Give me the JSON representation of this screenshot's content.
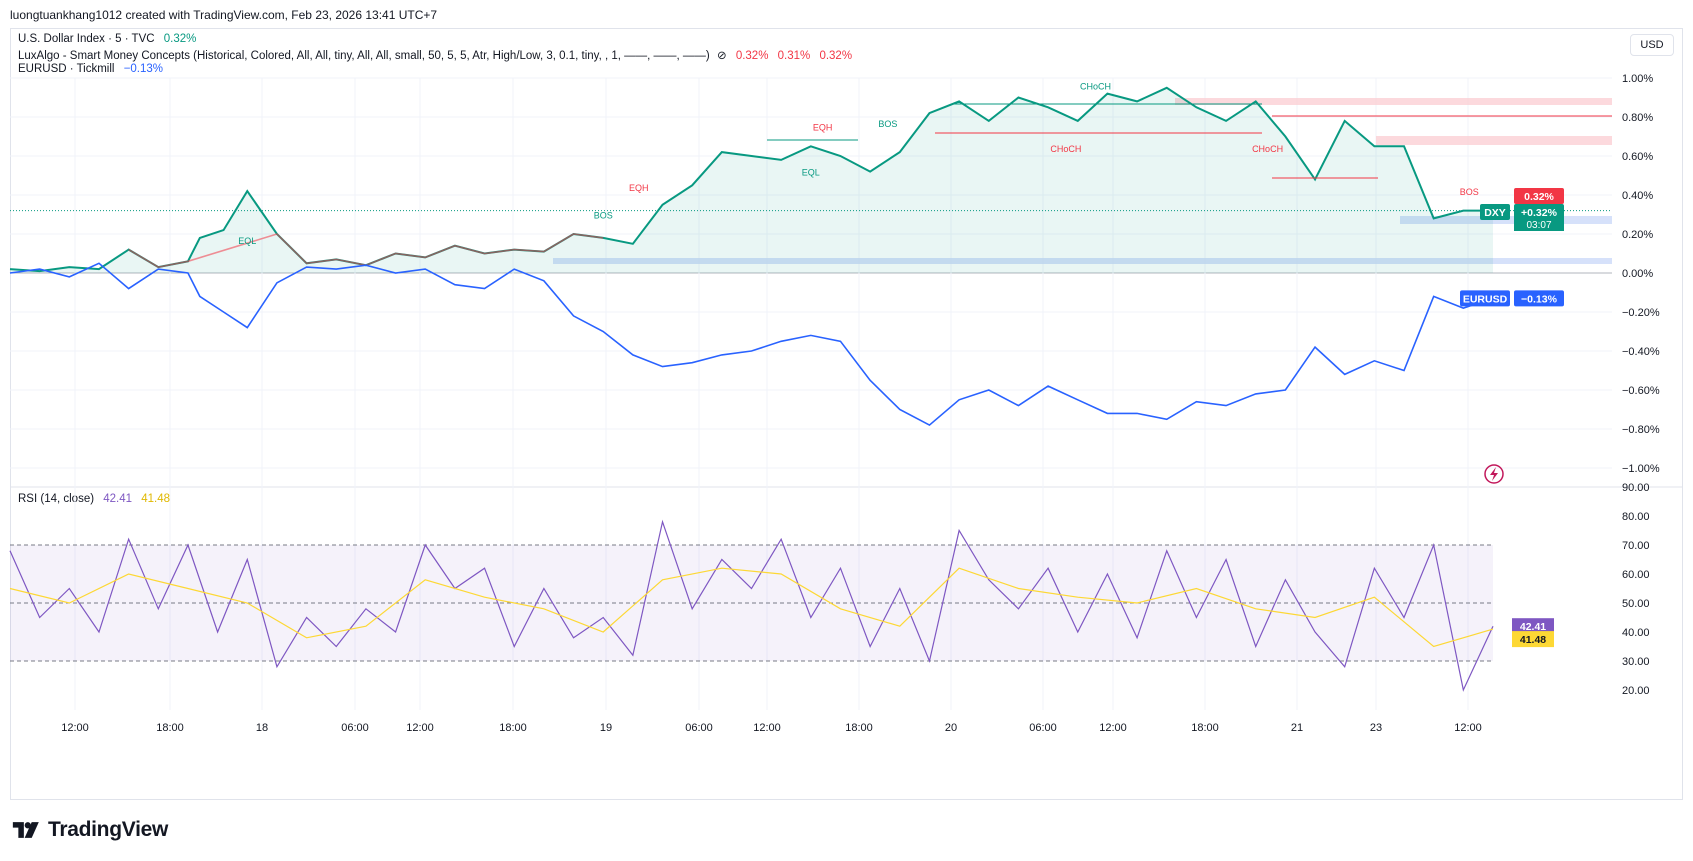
{
  "header": {
    "text": "luongtuankhang1012 created with TradingView.com, Feb 23, 2026 13:41 UTC+7"
  },
  "legend": {
    "line1_name": "U.S. Dollar Index · 5 · TVC",
    "line1_pct": "0.32%",
    "line2_name": "LuxAlgo - Smart Money Concepts (Historical, Colored, All, All, tiny, All, All, small, 50, 5, 5, Atr, High/Low, 3, 0.1, tiny, , 1, ——, ——, ——)",
    "line2_symbol": "⊘",
    "line2_v1": "0.32%",
    "line2_v2": "0.31%",
    "line2_v3": "0.32%",
    "line3_name": "EURUSD · Tickmill",
    "line3_pct": "−0.13%"
  },
  "currency_button": "USD",
  "rsi_legend": {
    "name": "RSI (14, close)",
    "v1": "42.41",
    "v2": "41.48"
  },
  "logo_text": "TradingView",
  "colors": {
    "dxy_green": "#089981",
    "dxy_red": "#f23645",
    "eurusd_blue": "#2962ff",
    "rsi_purple": "#7e57c2",
    "rsi_ma_yellow": "#fdd835",
    "grid": "#f0f3fa"
  },
  "chart_data": [
    {
      "type": "line",
      "title": "U.S. Dollar Index · 5 · TVC",
      "ylabel": "",
      "ylim": [
        -1.1,
        1.1
      ],
      "y_unit": "%",
      "y_ticks": [
        "1.00%",
        "0.80%",
        "0.60%",
        "0.40%",
        "0.20%",
        "0.00%",
        "−0.20%",
        "−0.40%",
        "−0.60%",
        "−0.80%",
        "−1.00%"
      ],
      "x_ticks": [
        "12:00",
        "18:00",
        "18",
        "06:00",
        "12:00",
        "18:00",
        "19",
        "06:00",
        "12:00",
        "18:00",
        "20",
        "06:00",
        "12:00",
        "18:00",
        "21",
        "23",
        "12:00"
      ],
      "grid": true,
      "series": [
        {
          "name": "DXY",
          "last_label": "+0.32%",
          "countdown": "03:07",
          "x": [
            0,
            5,
            10,
            15,
            20,
            25,
            30,
            32,
            36,
            40,
            45,
            50,
            55,
            60,
            65,
            70,
            75,
            80,
            85,
            90,
            95,
            100,
            105,
            110,
            115,
            120,
            125,
            130,
            135,
            140,
            145,
            150,
            155,
            160,
            165,
            170,
            175,
            180,
            185,
            190,
            195,
            200,
            205,
            210,
            215,
            220,
            225,
            230,
            235,
            240,
            245,
            250
          ],
          "values": [
            0.02,
            0.01,
            0.03,
            0.02,
            0.12,
            0.03,
            0.06,
            0.18,
            0.22,
            0.42,
            0.2,
            0.05,
            0.07,
            0.04,
            0.1,
            0.08,
            0.14,
            0.1,
            0.12,
            0.11,
            0.2,
            0.18,
            0.15,
            0.35,
            0.45,
            0.62,
            0.6,
            0.58,
            0.65,
            0.6,
            0.52,
            0.62,
            0.82,
            0.88,
            0.78,
            0.9,
            0.85,
            0.78,
            0.92,
            0.88,
            0.95,
            0.85,
            0.78,
            0.88,
            0.7,
            0.48,
            0.78,
            0.65,
            0.65,
            0.28,
            0.32,
            0.32
          ]
        },
        {
          "name": "EURUSD",
          "last_label": "−0.13%",
          "x": [
            0,
            5,
            10,
            15,
            20,
            25,
            30,
            32,
            36,
            40,
            45,
            50,
            55,
            60,
            65,
            70,
            75,
            80,
            85,
            90,
            95,
            100,
            105,
            110,
            115,
            120,
            125,
            130,
            135,
            140,
            145,
            150,
            155,
            160,
            165,
            170,
            175,
            180,
            185,
            190,
            195,
            200,
            205,
            210,
            215,
            220,
            225,
            230,
            235,
            240,
            245,
            250
          ],
          "values": [
            0.0,
            0.02,
            -0.02,
            0.05,
            -0.08,
            0.02,
            0.0,
            -0.12,
            -0.2,
            -0.28,
            -0.05,
            0.03,
            0.02,
            0.04,
            0.0,
            0.02,
            -0.06,
            -0.08,
            0.02,
            -0.04,
            -0.22,
            -0.3,
            -0.42,
            -0.48,
            -0.46,
            -0.42,
            -0.4,
            -0.35,
            -0.32,
            -0.35,
            -0.55,
            -0.7,
            -0.78,
            -0.65,
            -0.6,
            -0.68,
            -0.58,
            -0.65,
            -0.72,
            -0.72,
            -0.75,
            -0.66,
            -0.68,
            -0.62,
            -0.6,
            -0.38,
            -0.52,
            -0.45,
            -0.5,
            -0.12,
            -0.18,
            -0.13
          ]
        }
      ],
      "annotations": [
        {
          "text": "BOS",
          "x": 100,
          "y": 0.28,
          "color": "green"
        },
        {
          "text": "BOS",
          "x": 148,
          "y": 0.75,
          "color": "green"
        },
        {
          "text": "CHoCH",
          "x": 183,
          "y": 0.94,
          "color": "green"
        },
        {
          "text": "CHoCH",
          "x": 178,
          "y": 0.62,
          "color": "red"
        },
        {
          "text": "CHoCH",
          "x": 212,
          "y": 0.62,
          "color": "red"
        },
        {
          "text": "BOS",
          "x": 246,
          "y": 0.4,
          "color": "red"
        },
        {
          "text": "EQH",
          "x": 137,
          "y": 0.73,
          "color": "red"
        },
        {
          "text": "EQL",
          "x": 135,
          "y": 0.5,
          "color": "green"
        },
        {
          "text": "EQH",
          "x": 106,
          "y": 0.42,
          "color": "red"
        },
        {
          "text": "EQL",
          "x": 40,
          "y": 0.15,
          "color": "green"
        }
      ]
    },
    {
      "type": "line",
      "title": "RSI (14, close)",
      "ylim": [
        15,
        90
      ],
      "y_ticks": [
        "90.00",
        "80.00",
        "70.00",
        "60.00",
        "50.00",
        "40.00",
        "30.00",
        "20.00"
      ],
      "bands": [
        30,
        50,
        70
      ],
      "series": [
        {
          "name": "RSI",
          "last_label": "42.41",
          "x": [
            0,
            5,
            10,
            15,
            20,
            25,
            30,
            35,
            40,
            45,
            50,
            55,
            60,
            65,
            70,
            75,
            80,
            85,
            90,
            95,
            100,
            105,
            110,
            115,
            120,
            125,
            130,
            135,
            140,
            145,
            150,
            155,
            160,
            165,
            170,
            175,
            180,
            185,
            190,
            195,
            200,
            205,
            210,
            215,
            220,
            225,
            230,
            235,
            240,
            245,
            250
          ],
          "values": [
            68,
            45,
            55,
            40,
            72,
            48,
            70,
            40,
            65,
            28,
            45,
            35,
            48,
            40,
            70,
            55,
            62,
            35,
            55,
            38,
            45,
            32,
            78,
            48,
            65,
            55,
            72,
            45,
            62,
            35,
            55,
            30,
            75,
            58,
            48,
            62,
            40,
            60,
            38,
            68,
            45,
            65,
            35,
            58,
            40,
            28,
            62,
            45,
            70,
            20,
            42
          ]
        },
        {
          "name": "RSI MA",
          "last_label": "41.48",
          "x": [
            0,
            10,
            20,
            30,
            40,
            50,
            60,
            70,
            80,
            90,
            100,
            110,
            120,
            130,
            140,
            150,
            160,
            170,
            180,
            190,
            200,
            210,
            220,
            230,
            240,
            250
          ],
          "values": [
            55,
            50,
            60,
            55,
            50,
            38,
            42,
            58,
            52,
            48,
            40,
            58,
            62,
            60,
            48,
            42,
            62,
            55,
            52,
            50,
            55,
            48,
            45,
            52,
            35,
            41
          ]
        }
      ]
    }
  ]
}
